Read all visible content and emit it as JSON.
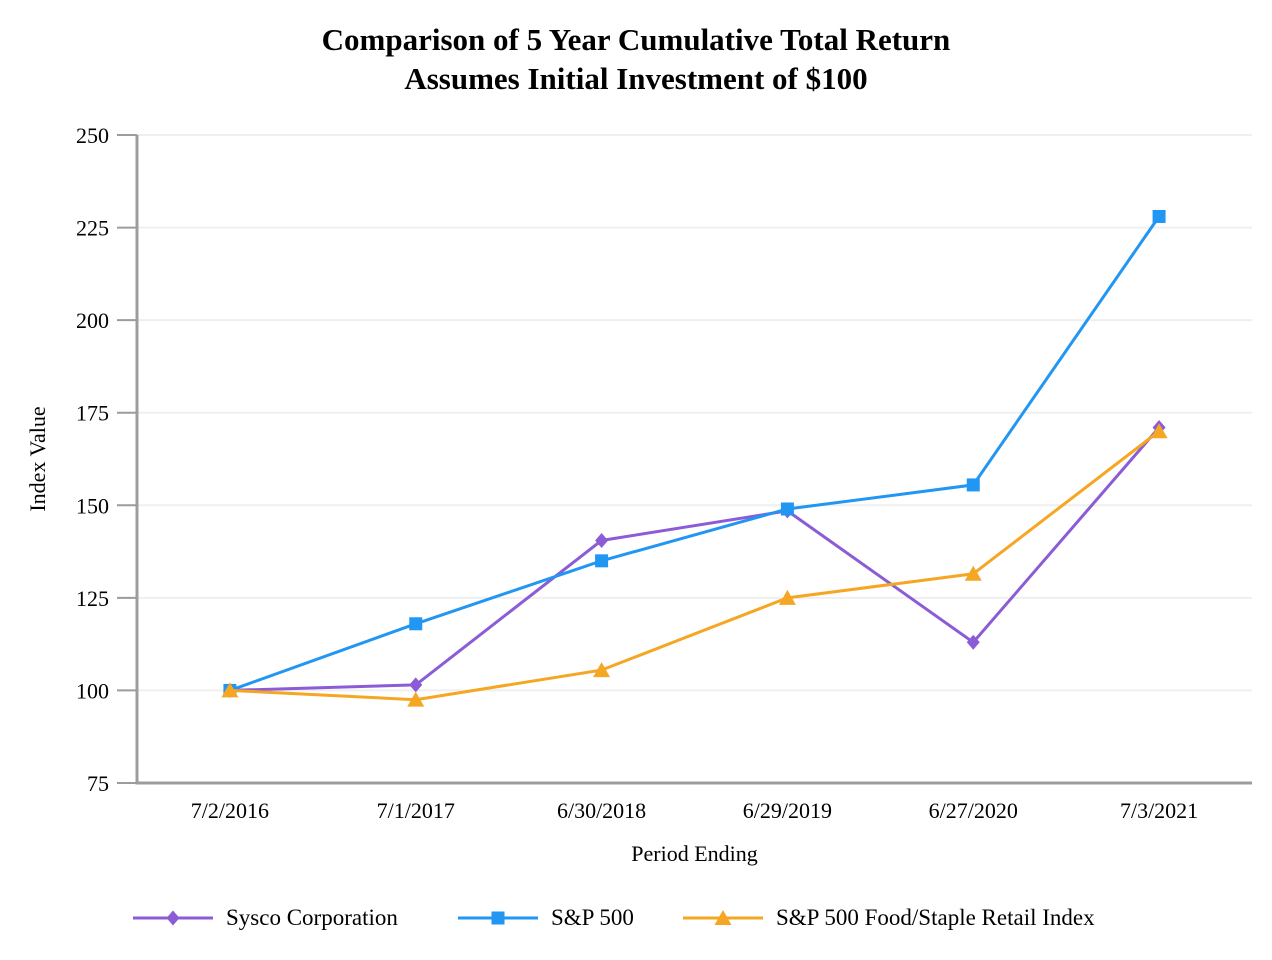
{
  "title": {
    "line1": "Comparison of 5 Year Cumulative Total Return",
    "line2": "Assumes Initial Investment of $100"
  },
  "chart_data": {
    "type": "line",
    "categories": [
      "7/2/2016",
      "7/1/2017",
      "6/30/2018",
      "6/29/2019",
      "6/27/2020",
      "7/3/2021"
    ],
    "series": [
      {
        "name": "Sysco Corporation",
        "marker": "diamond",
        "color": "#8B5CD6",
        "values": [
          100,
          101.5,
          140.5,
          148.5,
          113,
          171
        ]
      },
      {
        "name": "S&P 500",
        "marker": "square",
        "color": "#2196F3",
        "values": [
          100,
          118,
          135,
          149,
          155.5,
          228
        ]
      },
      {
        "name": "S&P 500 Food/Staple Retail Index",
        "marker": "triangle",
        "color": "#F5A623",
        "values": [
          100,
          97.5,
          105.5,
          125,
          131.5,
          170
        ]
      }
    ],
    "xlabel": "Period Ending",
    "ylabel": "Index Value",
    "ylim": [
      75,
      250
    ],
    "ytick_step": 25,
    "yticks": [
      75,
      100,
      125,
      150,
      175,
      200,
      225,
      250
    ],
    "grid": true,
    "legend_position": "bottom",
    "colors": {
      "axis": "#9C9C9C",
      "gridline": "#EFEFEF",
      "text": "#000000",
      "background": "#FFFFFF"
    }
  }
}
